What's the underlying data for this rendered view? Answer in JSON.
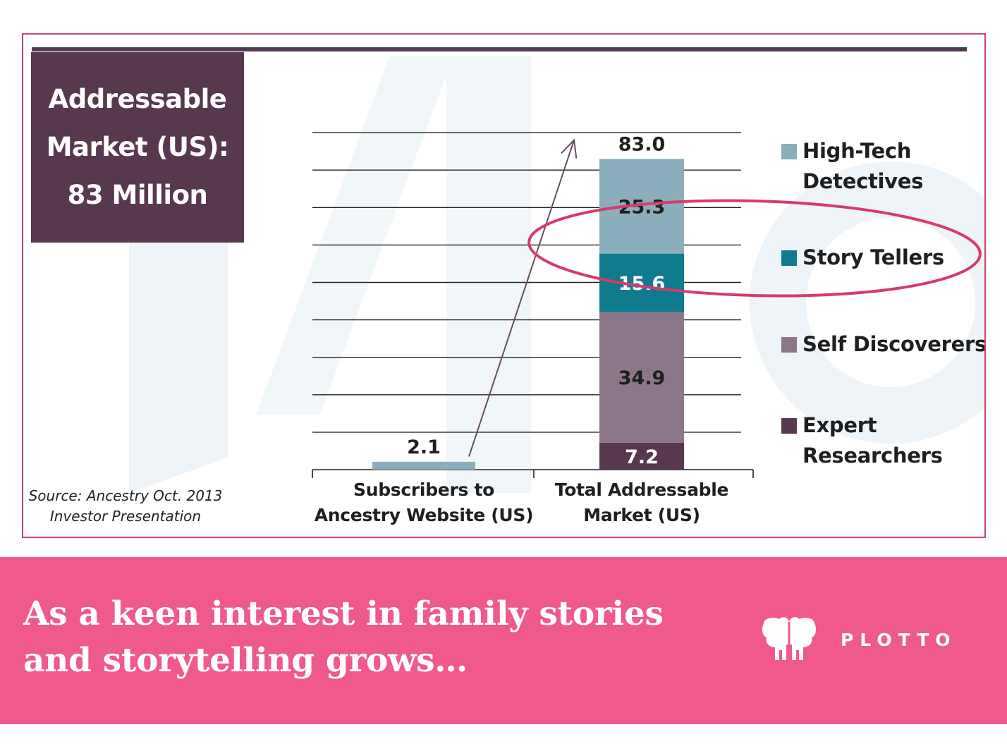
{
  "headline": {
    "lines": [
      "Addressable",
      "Market (US):",
      "83 Million"
    ]
  },
  "source": {
    "lines": [
      "Source: Ancestry Oct. 2013",
      "Investor Presentation"
    ]
  },
  "colors": {
    "frame": "#d0436f",
    "headline_bg": "#57384f",
    "high_tech": "#8aaebb",
    "story_tellers": "#0f7b8f",
    "self_discoverers": "#8b7789",
    "expert_researchers": "#57384f",
    "subscribers_bar": "#8aaebb",
    "highlight": "#d83a6c",
    "banner": "#ef5a8b"
  },
  "chart_data": {
    "type": "bar",
    "stacked": true,
    "categories": [
      "Subscribers to\nAncestry Website (US)",
      "Total Addressable\nMarket (US)"
    ],
    "ylim": [
      0,
      100
    ],
    "grid": true,
    "legend_position": "right",
    "series": [
      {
        "name": "Subscribers",
        "color_key": "subscribers_bar",
        "values": [
          2.1,
          null
        ],
        "labels": [
          "2.1",
          ""
        ]
      },
      {
        "name": "Expert Researchers",
        "color_key": "expert_researchers",
        "values": [
          null,
          7.2
        ],
        "labels": [
          "",
          "7.2"
        ]
      },
      {
        "name": "Self Discoverers",
        "color_key": "self_discoverers",
        "values": [
          null,
          34.9
        ],
        "labels": [
          "",
          "34.9"
        ]
      },
      {
        "name": "Story Tellers",
        "color_key": "story_tellers",
        "values": [
          null,
          15.6
        ],
        "labels": [
          "",
          "15.6"
        ]
      },
      {
        "name": "High-Tech Detectives",
        "color_key": "high_tech",
        "values": [
          null,
          25.3
        ],
        "labels": [
          "",
          "25.3"
        ]
      }
    ],
    "totals": [
      null,
      83.0
    ],
    "total_labels": [
      "",
      "83.0"
    ],
    "legend": [
      {
        "label": "High-Tech\nDetectives",
        "color_key": "high_tech"
      },
      {
        "label": "Story Tellers",
        "color_key": "story_tellers"
      },
      {
        "label": "Self Discoverers",
        "color_key": "self_discoverers"
      },
      {
        "label": "Expert\nResearchers",
        "color_key": "expert_researchers"
      }
    ],
    "annotations": [
      {
        "type": "arrow",
        "from_category": 0,
        "to_category": 1
      },
      {
        "type": "highlight-ellipse",
        "target": "Story Tellers"
      }
    ]
  },
  "banner": {
    "text": "As a keen interest in family stories\nand storytelling grows…",
    "brand": "PLOTTO",
    "logo_icon": "elephant-logo-icon"
  }
}
